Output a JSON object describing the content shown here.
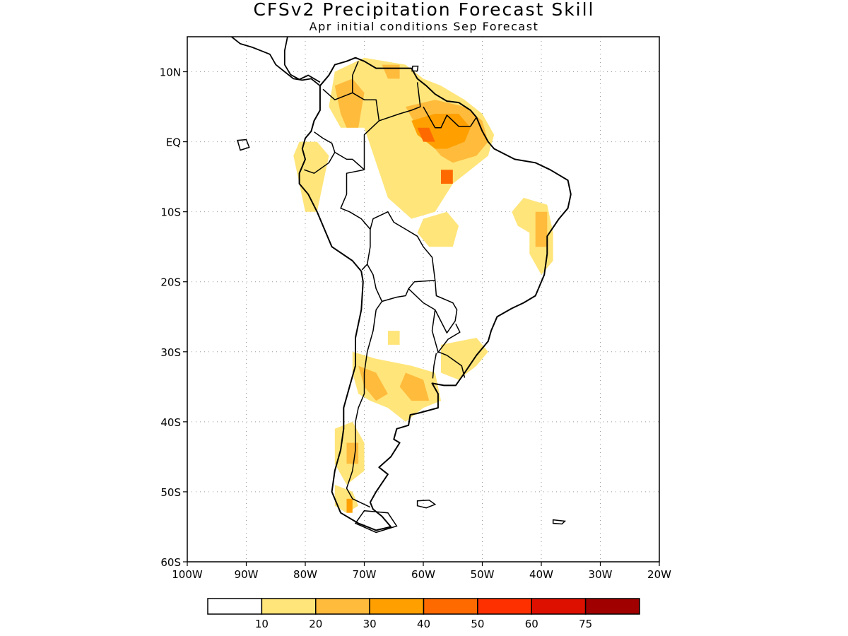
{
  "title": "CFSv2 Precipitation Forecast Skill",
  "subtitle": "Apr initial conditions  Sep Forecast",
  "map": {
    "lon_range": [
      -100,
      -20
    ],
    "lat_range": [
      -60,
      15
    ],
    "lat_ticks": [
      {
        "value": 10,
        "label": "10N"
      },
      {
        "value": 0,
        "label": "EQ"
      },
      {
        "value": -10,
        "label": "10S"
      },
      {
        "value": -20,
        "label": "20S"
      },
      {
        "value": -30,
        "label": "30S"
      },
      {
        "value": -40,
        "label": "40S"
      },
      {
        "value": -50,
        "label": "50S"
      },
      {
        "value": -60,
        "label": "60S"
      }
    ],
    "lon_ticks": [
      {
        "value": -100,
        "label": "100W"
      },
      {
        "value": -90,
        "label": "90W"
      },
      {
        "value": -80,
        "label": "80W"
      },
      {
        "value": -70,
        "label": "70W"
      },
      {
        "value": -60,
        "label": "60W"
      },
      {
        "value": -50,
        "label": "50W"
      },
      {
        "value": -40,
        "label": "40W"
      },
      {
        "value": -30,
        "label": "30W"
      },
      {
        "value": -20,
        "label": "20W"
      }
    ],
    "gridlines": true
  },
  "colorbar": {
    "colors": [
      "#ffffff",
      "#ffe57a",
      "#ffbb3c",
      "#ffa000",
      "#ff6a00",
      "#ff3000",
      "#dd1000",
      "#a00000"
    ],
    "labels": [
      "10",
      "20",
      "30",
      "40",
      "50",
      "60",
      "75"
    ]
  }
}
